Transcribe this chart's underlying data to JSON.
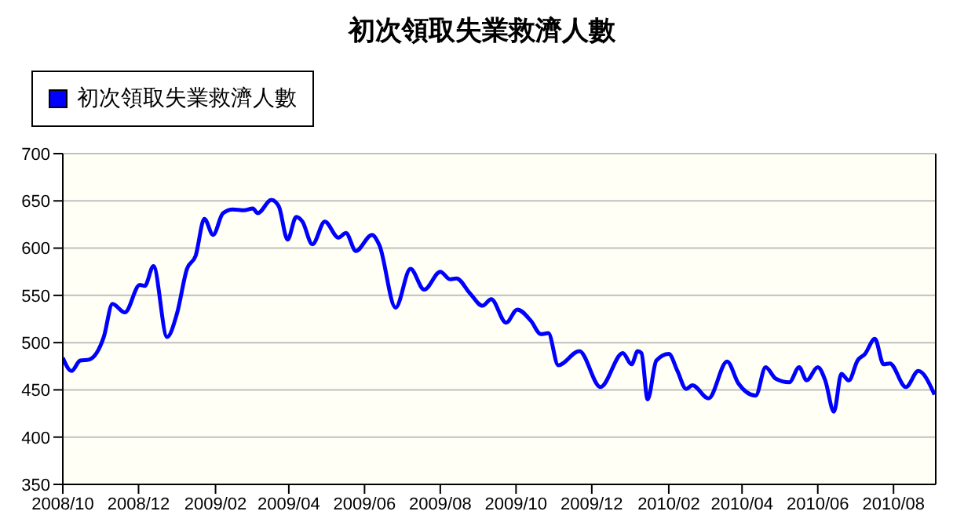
{
  "chart_data": {
    "type": "line",
    "title": "初次領取失業救濟人數",
    "x": [
      "2008-10-01",
      "2008-10-08",
      "2008-10-15",
      "2008-10-22",
      "2008-11-03",
      "2008-11-10",
      "2008-11-20",
      "2008-12-02",
      "2008-12-06",
      "2008-12-13",
      "2008-12-24",
      "2009-01-01",
      "2009-01-09",
      "2009-01-16",
      "2009-01-23",
      "2009-01-30",
      "2009-02-07",
      "2009-02-15",
      "2009-02-24",
      "2009-03-03",
      "2009-03-07",
      "2009-03-18",
      "2009-03-24",
      "2009-03-31",
      "2009-04-07",
      "2009-04-12",
      "2009-04-20",
      "2009-04-30",
      "2009-05-11",
      "2009-05-17",
      "2009-05-25",
      "2009-06-07",
      "2009-06-13",
      "2009-06-26",
      "2009-07-08",
      "2009-07-19",
      "2009-08-01",
      "2009-08-09",
      "2009-08-14",
      "2009-08-25",
      "2009-09-04",
      "2009-09-11",
      "2009-09-23",
      "2009-10-02",
      "2009-10-13",
      "2009-10-21",
      "2009-10-27",
      "2009-11-04",
      "2009-11-21",
      "2009-12-08",
      "2009-12-26",
      "2010-01-02",
      "2010-01-07",
      "2010-01-10",
      "2010-01-15",
      "2010-01-22",
      "2010-02-01",
      "2010-02-08",
      "2010-02-15",
      "2010-02-20",
      "2010-03-05",
      "2010-03-20",
      "2010-03-29",
      "2010-04-12",
      "2010-04-20",
      "2010-04-28",
      "2010-05-09",
      "2010-05-17",
      "2010-05-23",
      "2010-06-01",
      "2010-06-07",
      "2010-06-14",
      "2010-06-20",
      "2010-06-26",
      "2010-07-03",
      "2010-07-09",
      "2010-07-17",
      "2010-07-24",
      "2010-07-29",
      "2010-08-11",
      "2010-08-21",
      "2010-09-03"
    ],
    "series": [
      {
        "name": "初次領取失業救濟人數",
        "color": "#0000ff",
        "values": [
          484,
          470,
          481,
          482,
          506,
          541,
          532,
          561,
          560,
          581,
          506,
          531,
          578,
          592,
          631,
          614,
          637,
          641,
          640,
          642,
          637,
          651,
          644,
          609,
          633,
          628,
          604,
          628,
          611,
          616,
          597,
          614,
          603,
          537,
          578,
          556,
          575,
          567,
          568,
          552,
          539,
          546,
          521,
          535,
          523,
          509,
          510,
          476,
          491,
          453,
          489,
          477,
          491,
          489,
          440,
          481,
          488,
          470,
          451,
          455,
          441,
          480,
          457,
          444,
          474,
          462,
          458,
          474,
          460,
          474,
          460,
          427,
          467,
          460,
          481,
          488,
          504,
          477,
          478,
          453,
          470,
          445
        ]
      }
    ],
    "xlim": [
      "2008-10-01",
      "2010-09-04"
    ],
    "xticks": [
      {
        "value": "2008-10",
        "label": "2008/10"
      },
      {
        "value": "2008-12",
        "label": "2008/12"
      },
      {
        "value": "2009-02",
        "label": "2009/02"
      },
      {
        "value": "2009-04",
        "label": "2009/04"
      },
      {
        "value": "2009-06",
        "label": "2009/06"
      },
      {
        "value": "2009-08",
        "label": "2009/08"
      },
      {
        "value": "2009-10",
        "label": "2009/10"
      },
      {
        "value": "2009-12",
        "label": "2009/12"
      },
      {
        "value": "2010-02",
        "label": "2010/02"
      },
      {
        "value": "2010-04",
        "label": "2010/04"
      },
      {
        "value": "2010-06",
        "label": "2010/06"
      },
      {
        "value": "2010-08",
        "label": "2010/08"
      }
    ],
    "ylim": [
      350,
      700
    ],
    "yticks": [
      350,
      400,
      450,
      500,
      550,
      600,
      650,
      700
    ],
    "grid": "y",
    "legend": "top left",
    "marker": "none"
  }
}
